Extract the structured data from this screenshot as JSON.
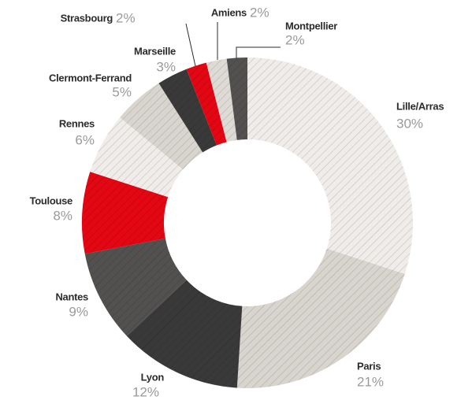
{
  "chart_data": {
    "type": "donut",
    "categories": [
      "Lille/Arras",
      "Paris",
      "Lyon",
      "Nantes",
      "Toulouse",
      "Rennes",
      "Clermont-Ferrand",
      "Marseille",
      "Strasbourg",
      "Amiens",
      "Montpellier"
    ],
    "values": [
      30,
      21,
      12,
      9,
      8,
      6,
      5,
      3,
      2,
      2,
      2
    ],
    "value_labels": [
      "30%",
      "21%",
      "12%",
      "9%",
      "8%",
      "6%",
      "5%",
      "3%",
      "2%",
      "2%",
      "2%"
    ],
    "colors": [
      "#efece9",
      "#d8d4ce",
      "#3a3939",
      "#535050",
      "#e30613",
      "#efece9",
      "#d8d4ce",
      "#3a3939",
      "#e30613",
      "#dedad5",
      "#535050"
    ]
  }
}
